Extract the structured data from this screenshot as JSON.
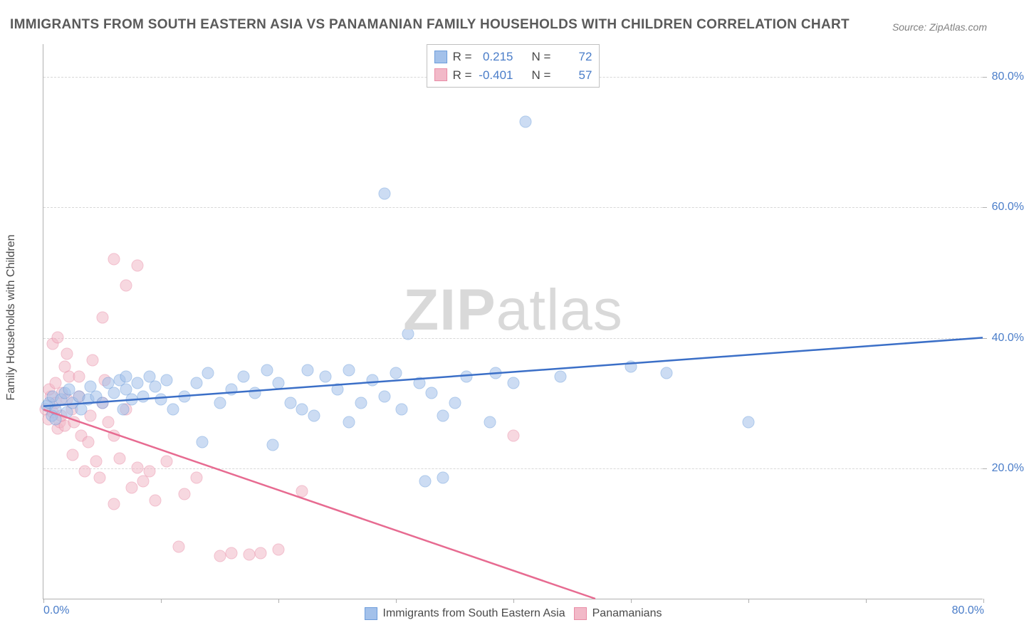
{
  "title": "IMMIGRANTS FROM SOUTH EASTERN ASIA VS PANAMANIAN FAMILY HOUSEHOLDS WITH CHILDREN CORRELATION CHART",
  "source": "Source: ZipAtlas.com",
  "watermark_bold": "ZIP",
  "watermark_rest": "atlas",
  "y_axis_label": "Family Households with Children",
  "chart": {
    "type": "scatter",
    "xlim": [
      0,
      80
    ],
    "ylim": [
      0,
      85
    ],
    "x_ticks_minor_step": 10,
    "x_tick_labels": {
      "0": "0.0%",
      "80": "80.0%"
    },
    "y_grid": [
      20,
      40,
      60,
      80
    ],
    "y_tick_labels": {
      "20": "20.0%",
      "40": "40.0%",
      "60": "60.0%",
      "80": "80.0%"
    },
    "background_color": "#ffffff",
    "grid_color": "#d8d8d8",
    "axis_color": "#b0b0b0",
    "tick_label_color": "#4a7dc9",
    "tick_label_fontsize": 16,
    "marker_size": 17,
    "marker_opacity": 0.55,
    "series": [
      {
        "name": "Immigrants from South Eastern Asia",
        "fill_color": "#a3c1ea",
        "stroke_color": "#6d9ddb",
        "trend_color": "#3b6fc7",
        "trend_width": 2.5,
        "R": "0.215",
        "N": "72",
        "trend": {
          "x1": 0,
          "y1": 29.5,
          "x2": 80,
          "y2": 40.0
        },
        "points": [
          [
            0.3,
            29.5
          ],
          [
            0.5,
            30.0
          ],
          [
            0.7,
            28.0
          ],
          [
            0.8,
            31.0
          ],
          [
            1.0,
            29.0
          ],
          [
            1.0,
            27.5
          ],
          [
            1.5,
            30.5
          ],
          [
            1.8,
            31.5
          ],
          [
            2.0,
            28.5
          ],
          [
            2.2,
            32.0
          ],
          [
            2.5,
            30.0
          ],
          [
            3.0,
            31.0
          ],
          [
            3.2,
            29.0
          ],
          [
            3.8,
            30.5
          ],
          [
            4.0,
            32.5
          ],
          [
            4.5,
            31.0
          ],
          [
            5.0,
            30.0
          ],
          [
            5.5,
            33.0
          ],
          [
            6.0,
            31.5
          ],
          [
            6.5,
            33.5
          ],
          [
            7.0,
            32.0
          ],
          [
            7.5,
            30.5
          ],
          [
            6.8,
            29.0
          ],
          [
            7.0,
            34.0
          ],
          [
            8.0,
            33.0
          ],
          [
            8.5,
            31.0
          ],
          [
            9.0,
            34.0
          ],
          [
            9.5,
            32.5
          ],
          [
            10.0,
            30.5
          ],
          [
            10.5,
            33.5
          ],
          [
            11.0,
            29.0
          ],
          [
            12.0,
            31.0
          ],
          [
            13.0,
            33.0
          ],
          [
            14.0,
            34.5
          ],
          [
            15.0,
            30.0
          ],
          [
            16.0,
            32.0
          ],
          [
            17.0,
            34.0
          ],
          [
            18.0,
            31.5
          ],
          [
            19.0,
            35.0
          ],
          [
            19.5,
            23.5
          ],
          [
            20.0,
            33.0
          ],
          [
            21.0,
            30.0
          ],
          [
            22.0,
            29.0
          ],
          [
            22.5,
            35.0
          ],
          [
            23.0,
            28.0
          ],
          [
            24.0,
            34.0
          ],
          [
            25.0,
            32.0
          ],
          [
            26.0,
            27.0
          ],
          [
            26.0,
            35.0
          ],
          [
            27.0,
            30.0
          ],
          [
            28.0,
            33.5
          ],
          [
            29.0,
            31.0
          ],
          [
            29.0,
            62.0
          ],
          [
            30.0,
            34.5
          ],
          [
            30.5,
            29.0
          ],
          [
            31.0,
            40.5
          ],
          [
            32.0,
            33.0
          ],
          [
            33.0,
            31.5
          ],
          [
            34.0,
            28.0
          ],
          [
            32.5,
            18.0
          ],
          [
            34.0,
            18.5
          ],
          [
            35.0,
            30.0
          ],
          [
            36.0,
            34.0
          ],
          [
            38.0,
            27.0
          ],
          [
            38.5,
            34.5
          ],
          [
            40.0,
            33.0
          ],
          [
            41.0,
            73.0
          ],
          [
            44.0,
            34.0
          ],
          [
            50.0,
            35.5
          ],
          [
            53.0,
            34.5
          ],
          [
            60.0,
            27.0
          ],
          [
            13.5,
            24.0
          ]
        ]
      },
      {
        "name": "Panamanians",
        "fill_color": "#f2b9c8",
        "stroke_color": "#e98ca6",
        "trend_color": "#e76b91",
        "trend_width": 2.5,
        "R": "-0.401",
        "N": "57",
        "trend": {
          "x1": 0,
          "y1": 29.0,
          "x2": 47,
          "y2": 0.0
        },
        "points": [
          [
            0.2,
            29.0
          ],
          [
            0.4,
            27.5
          ],
          [
            0.6,
            31.0
          ],
          [
            0.8,
            28.5
          ],
          [
            1.0,
            30.0
          ],
          [
            0.5,
            32.0
          ],
          [
            1.2,
            26.0
          ],
          [
            1.4,
            27.0
          ],
          [
            1.6,
            31.5
          ],
          [
            1.8,
            26.5
          ],
          [
            1.0,
            33.0
          ],
          [
            1.5,
            28.0
          ],
          [
            2.0,
            30.5
          ],
          [
            2.2,
            34.0
          ],
          [
            1.8,
            35.5
          ],
          [
            2.4,
            29.0
          ],
          [
            2.6,
            27.0
          ],
          [
            2.0,
            37.5
          ],
          [
            0.8,
            39.0
          ],
          [
            3.0,
            31.0
          ],
          [
            3.2,
            25.0
          ],
          [
            2.5,
            22.0
          ],
          [
            3.8,
            24.0
          ],
          [
            3.0,
            34.0
          ],
          [
            4.0,
            28.0
          ],
          [
            4.2,
            36.5
          ],
          [
            1.2,
            40.0
          ],
          [
            4.5,
            21.0
          ],
          [
            3.5,
            19.5
          ],
          [
            5.0,
            30.0
          ],
          [
            5.2,
            33.5
          ],
          [
            4.8,
            18.5
          ],
          [
            5.5,
            27.0
          ],
          [
            6.0,
            25.0
          ],
          [
            5.0,
            43.0
          ],
          [
            6.5,
            21.5
          ],
          [
            6.0,
            14.5
          ],
          [
            7.0,
            29.0
          ],
          [
            7.5,
            17.0
          ],
          [
            8.0,
            20.0
          ],
          [
            7.0,
            48.0
          ],
          [
            8.5,
            18.0
          ],
          [
            9.0,
            19.5
          ],
          [
            6.0,
            52.0
          ],
          [
            9.5,
            15.0
          ],
          [
            8.0,
            51.0
          ],
          [
            10.5,
            21.0
          ],
          [
            11.5,
            8.0
          ],
          [
            12.0,
            16.0
          ],
          [
            13.0,
            18.5
          ],
          [
            15.0,
            6.5
          ],
          [
            16.0,
            7.0
          ],
          [
            17.5,
            6.8
          ],
          [
            18.5,
            7.0
          ],
          [
            20.0,
            7.5
          ],
          [
            22.0,
            16.5
          ],
          [
            40.0,
            25.0
          ]
        ]
      }
    ]
  },
  "legend_top_labels": {
    "R": "R =",
    "N": "N ="
  },
  "legend_bottom": [
    {
      "swatch_fill": "#a3c1ea",
      "swatch_stroke": "#6d9ddb",
      "label": "Immigrants from South Eastern Asia"
    },
    {
      "swatch_fill": "#f2b9c8",
      "swatch_stroke": "#e98ca6",
      "label": "Panamanians"
    }
  ]
}
